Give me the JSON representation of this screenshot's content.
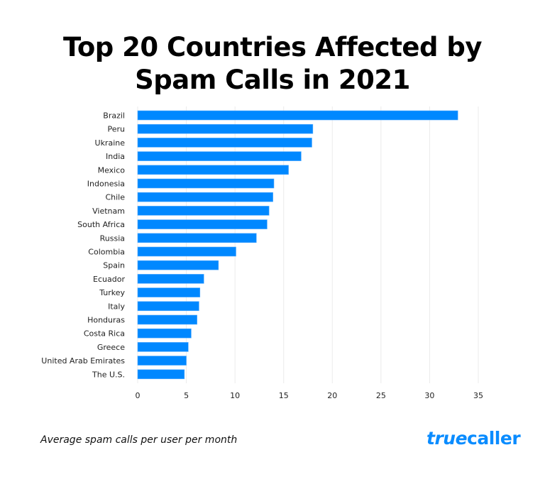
{
  "chart_data": {
    "type": "bar",
    "orientation": "horizontal",
    "title_lines": [
      "Top 20 Countries Affected by",
      "Spam Calls in 2021"
    ],
    "categories": [
      "Brazil",
      "Peru",
      "Ukraine",
      "India",
      "Mexico",
      "Indonesia",
      "Chile",
      "Vietnam",
      "South Africa",
      "Russia",
      "Colombia",
      "Spain",
      "Ecuador",
      "Turkey",
      "Italy",
      "Honduras",
      "Costa Rica",
      "Greece",
      "United Arab Emirates",
      "The U.S."
    ],
    "values": [
      32.9,
      18.0,
      17.9,
      16.8,
      15.5,
      14.0,
      13.9,
      13.5,
      13.3,
      12.2,
      10.1,
      8.3,
      6.8,
      6.4,
      6.3,
      6.1,
      5.5,
      5.2,
      5.0,
      4.8
    ],
    "xlim": [
      0,
      35
    ],
    "xticks": [
      0,
      5,
      10,
      15,
      20,
      25,
      30,
      35
    ],
    "grid": true,
    "bar_color": "#0088FF",
    "caption": "Average spam calls per user per month"
  },
  "logo": {
    "text_a": "true",
    "text_b": "caller",
    "color": "#0A8CFF"
  }
}
